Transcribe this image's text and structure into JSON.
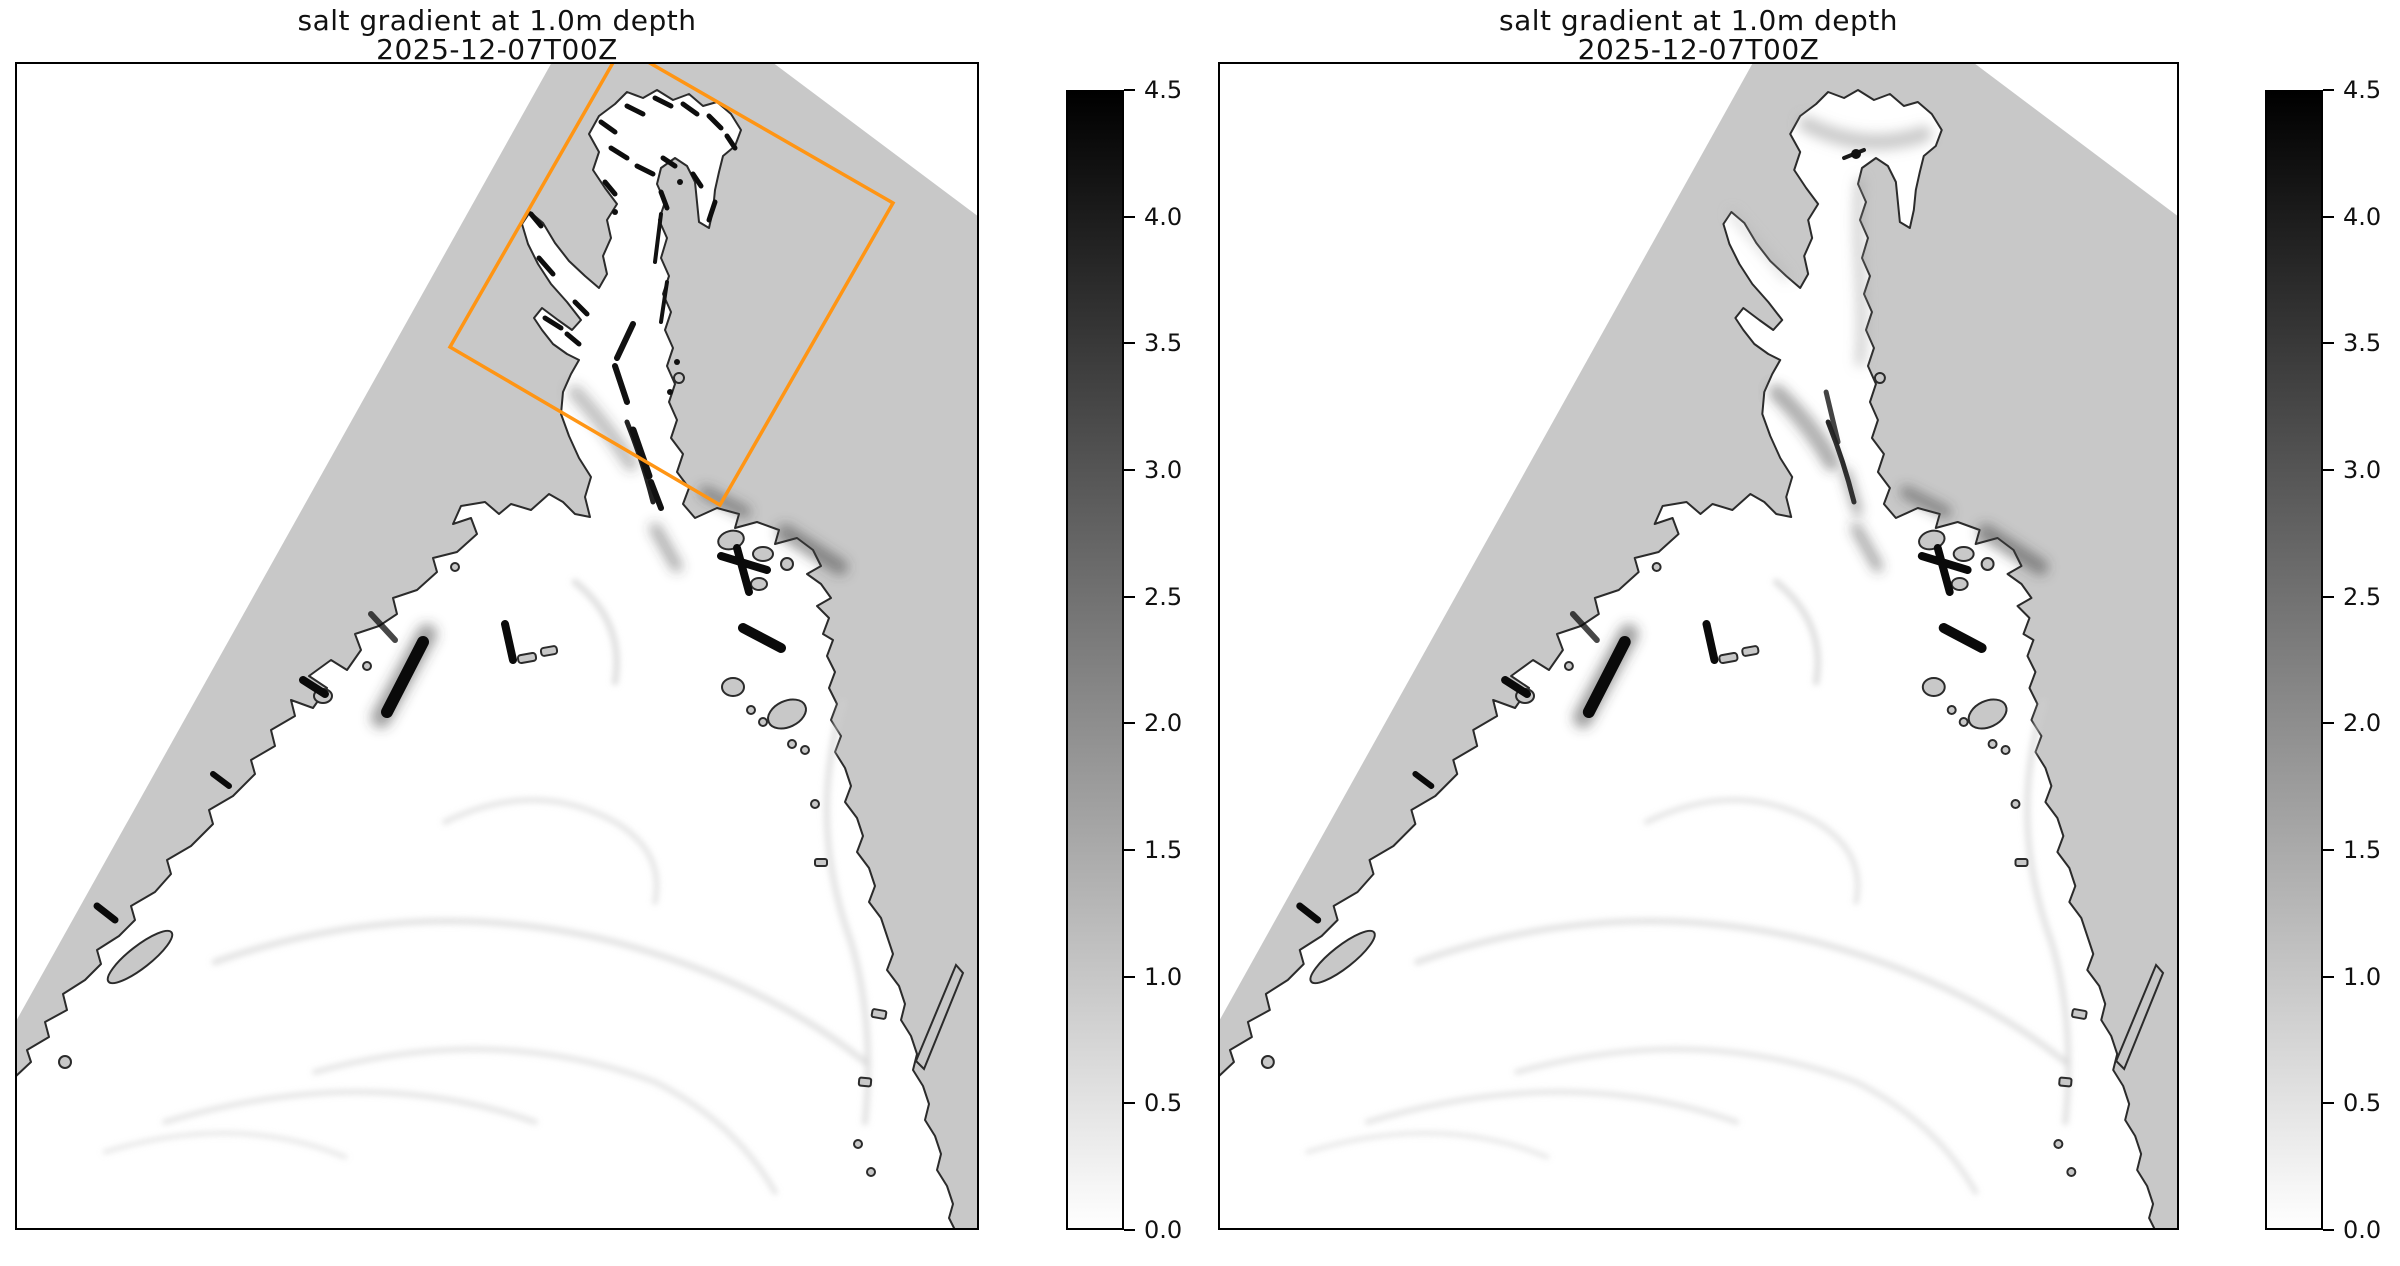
{
  "panels": [
    {
      "id": "left",
      "title_line1": "salt gradient at 1.0m depth",
      "title_line2": "2025-12-07T00Z",
      "has_roi_box": true
    },
    {
      "id": "right",
      "title_line1": "salt gradient at 1.0m depth",
      "title_line2": "2025-12-07T00Z",
      "has_roi_box": false
    }
  ],
  "colorbar": {
    "orientation": "vertical",
    "min": 0.0,
    "max": 4.5,
    "tick_labels": [
      "4.5",
      "4.0",
      "3.5",
      "3.0",
      "2.5",
      "2.0",
      "1.5",
      "1.0",
      "0.5",
      "0.0"
    ],
    "colormap": "grayscale, black at 4.5 (top) to white at 0.0 (bottom)"
  },
  "colors": {
    "land_gray": "#c8c8c8",
    "water_white": "#ffffff",
    "coastline": "#2b2b2b",
    "roi_orange": "#ff9514",
    "frame_black": "#000000",
    "cbar_top": "#000000",
    "cbar_bottom": "#ffffff",
    "title_text": "#111111"
  },
  "chart_data": {
    "type": "heatmap",
    "layout": "two identical coastal map panels side by side, each with its own vertical grayscale colorbar on the right; no x/y axis tick labels",
    "panels": [
      {
        "title": "salt gradient at 1.0m depth",
        "subtitle": "2025-12-07T00Z",
        "colormap": "white (0.0) to black (4.5)",
        "colorbar_ticks": [
          4.5,
          4.0,
          3.5,
          3.0,
          2.5,
          2.0,
          1.5,
          1.0,
          0.5,
          0.0
        ],
        "map_content": "gray land / model-domain mask with white estuary and coastal ocean; dark (high-gradient) streaks along narrow river channels and coastal passages",
        "annotations": [
          {
            "type": "rotated-rectangle",
            "color": "#ff9514",
            "location": "upper estuary region"
          }
        ]
      },
      {
        "title": "salt gradient at 1.0m depth",
        "subtitle": "2025-12-07T00Z",
        "colormap": "white (0.0) to black (4.5)",
        "colorbar_ticks": [
          4.5,
          4.0,
          3.5,
          3.0,
          2.5,
          2.0,
          1.5,
          1.0,
          0.5,
          0.0
        ],
        "map_content": "same domain rendered smoother: lighter gray shading in estuary channel, same dark coastal streaks",
        "annotations": []
      }
    ]
  }
}
